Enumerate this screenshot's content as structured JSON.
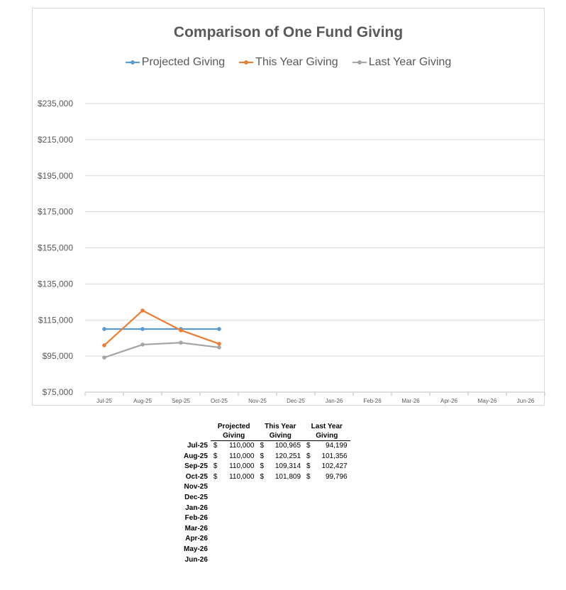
{
  "chart_data": {
    "type": "line",
    "title": "Comparison of One Fund Giving",
    "categories": [
      "Jul-25",
      "Aug-25",
      "Sep-25",
      "Oct-25",
      "Nov-25",
      "Dec-25",
      "Jan-26",
      "Feb-26",
      "Mar-26",
      "Apr-26",
      "May-26",
      "Jun-26"
    ],
    "series": [
      {
        "name": "Projected Giving",
        "color": "#5B9BD5",
        "values": [
          110000,
          110000,
          110000,
          110000,
          null,
          null,
          null,
          null,
          null,
          null,
          null,
          null
        ]
      },
      {
        "name": "This Year Giving",
        "color": "#ED7D31",
        "values": [
          100965,
          120251,
          109314,
          101809,
          null,
          null,
          null,
          null,
          null,
          null,
          null,
          null
        ]
      },
      {
        "name": "Last Year Giving",
        "color": "#A5A5A5",
        "values": [
          94199,
          101356,
          102427,
          99796,
          null,
          null,
          null,
          null,
          null,
          null,
          null,
          null
        ]
      }
    ],
    "ylim": [
      75000,
      235000
    ],
    "yticks": [
      "$75,000",
      "$95,000",
      "$115,000",
      "$135,000",
      "$155,000",
      "$175,000",
      "$195,000",
      "$215,000",
      "$235,000"
    ],
    "ytick_values": [
      75000,
      95000,
      115000,
      135000,
      155000,
      175000,
      195000,
      215000,
      235000
    ],
    "grid": true,
    "legend_position": "top"
  },
  "table": {
    "headers": [
      {
        "line1": "Projected",
        "line2": "Giving"
      },
      {
        "line1": "This Year",
        "line2": "Giving"
      },
      {
        "line1": "Last Year",
        "line2": "Giving"
      }
    ],
    "currency_symbol": "$",
    "rows": [
      {
        "month": "Jul-25",
        "projected": "110,000",
        "this_year": "100,965",
        "last_year": "94,199"
      },
      {
        "month": "Aug-25",
        "projected": "110,000",
        "this_year": "120,251",
        "last_year": "101,356"
      },
      {
        "month": "Sep-25",
        "projected": "110,000",
        "this_year": "109,314",
        "last_year": "102,427"
      },
      {
        "month": "Oct-25",
        "projected": "110,000",
        "this_year": "101,809",
        "last_year": "99,796"
      },
      {
        "month": "Nov-25",
        "projected": "",
        "this_year": "",
        "last_year": ""
      },
      {
        "month": "Dec-25",
        "projected": "",
        "this_year": "",
        "last_year": ""
      },
      {
        "month": "Jan-26",
        "projected": "",
        "this_year": "",
        "last_year": ""
      },
      {
        "month": "Feb-26",
        "projected": "",
        "this_year": "",
        "last_year": ""
      },
      {
        "month": "Mar-26",
        "projected": "",
        "this_year": "",
        "last_year": ""
      },
      {
        "month": "Apr-26",
        "projected": "",
        "this_year": "",
        "last_year": ""
      },
      {
        "month": "May-26",
        "projected": "",
        "this_year": "",
        "last_year": ""
      },
      {
        "month": "Jun-26",
        "projected": "",
        "this_year": "",
        "last_year": ""
      }
    ]
  }
}
